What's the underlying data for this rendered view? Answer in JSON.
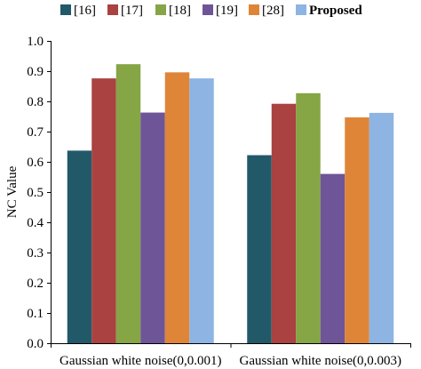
{
  "chart_data": {
    "type": "bar",
    "title": "",
    "xlabel": "",
    "ylabel": "NC Value",
    "ylim": [
      0,
      1.0
    ],
    "yticks": [
      "0.0",
      "0.1",
      "0.2",
      "0.3",
      "0.4",
      "0.5",
      "0.6",
      "0.7",
      "0.8",
      "0.9",
      "1.0"
    ],
    "grid": false,
    "legend": "top",
    "categories": [
      "Gaussian white noise(0,0.001)",
      "Gaussian white noise(0,0.003)"
    ],
    "series": [
      {
        "name": "[16]",
        "color": "#215968",
        "values": [
          0.637,
          0.622
        ]
      },
      {
        "name": "[17]",
        "color": "#a94240",
        "values": [
          0.876,
          0.792
        ]
      },
      {
        "name": "[18]",
        "color": "#86a545",
        "values": [
          0.923,
          0.827
        ]
      },
      {
        "name": "[19]",
        "color": "#6e5598",
        "values": [
          0.763,
          0.56
        ]
      },
      {
        "name": "[28]",
        "color": "#df8538",
        "values": [
          0.896,
          0.747
        ]
      },
      {
        "name": "Proposed",
        "color": "#8db4e2",
        "values": [
          0.876,
          0.762
        ]
      }
    ]
  }
}
